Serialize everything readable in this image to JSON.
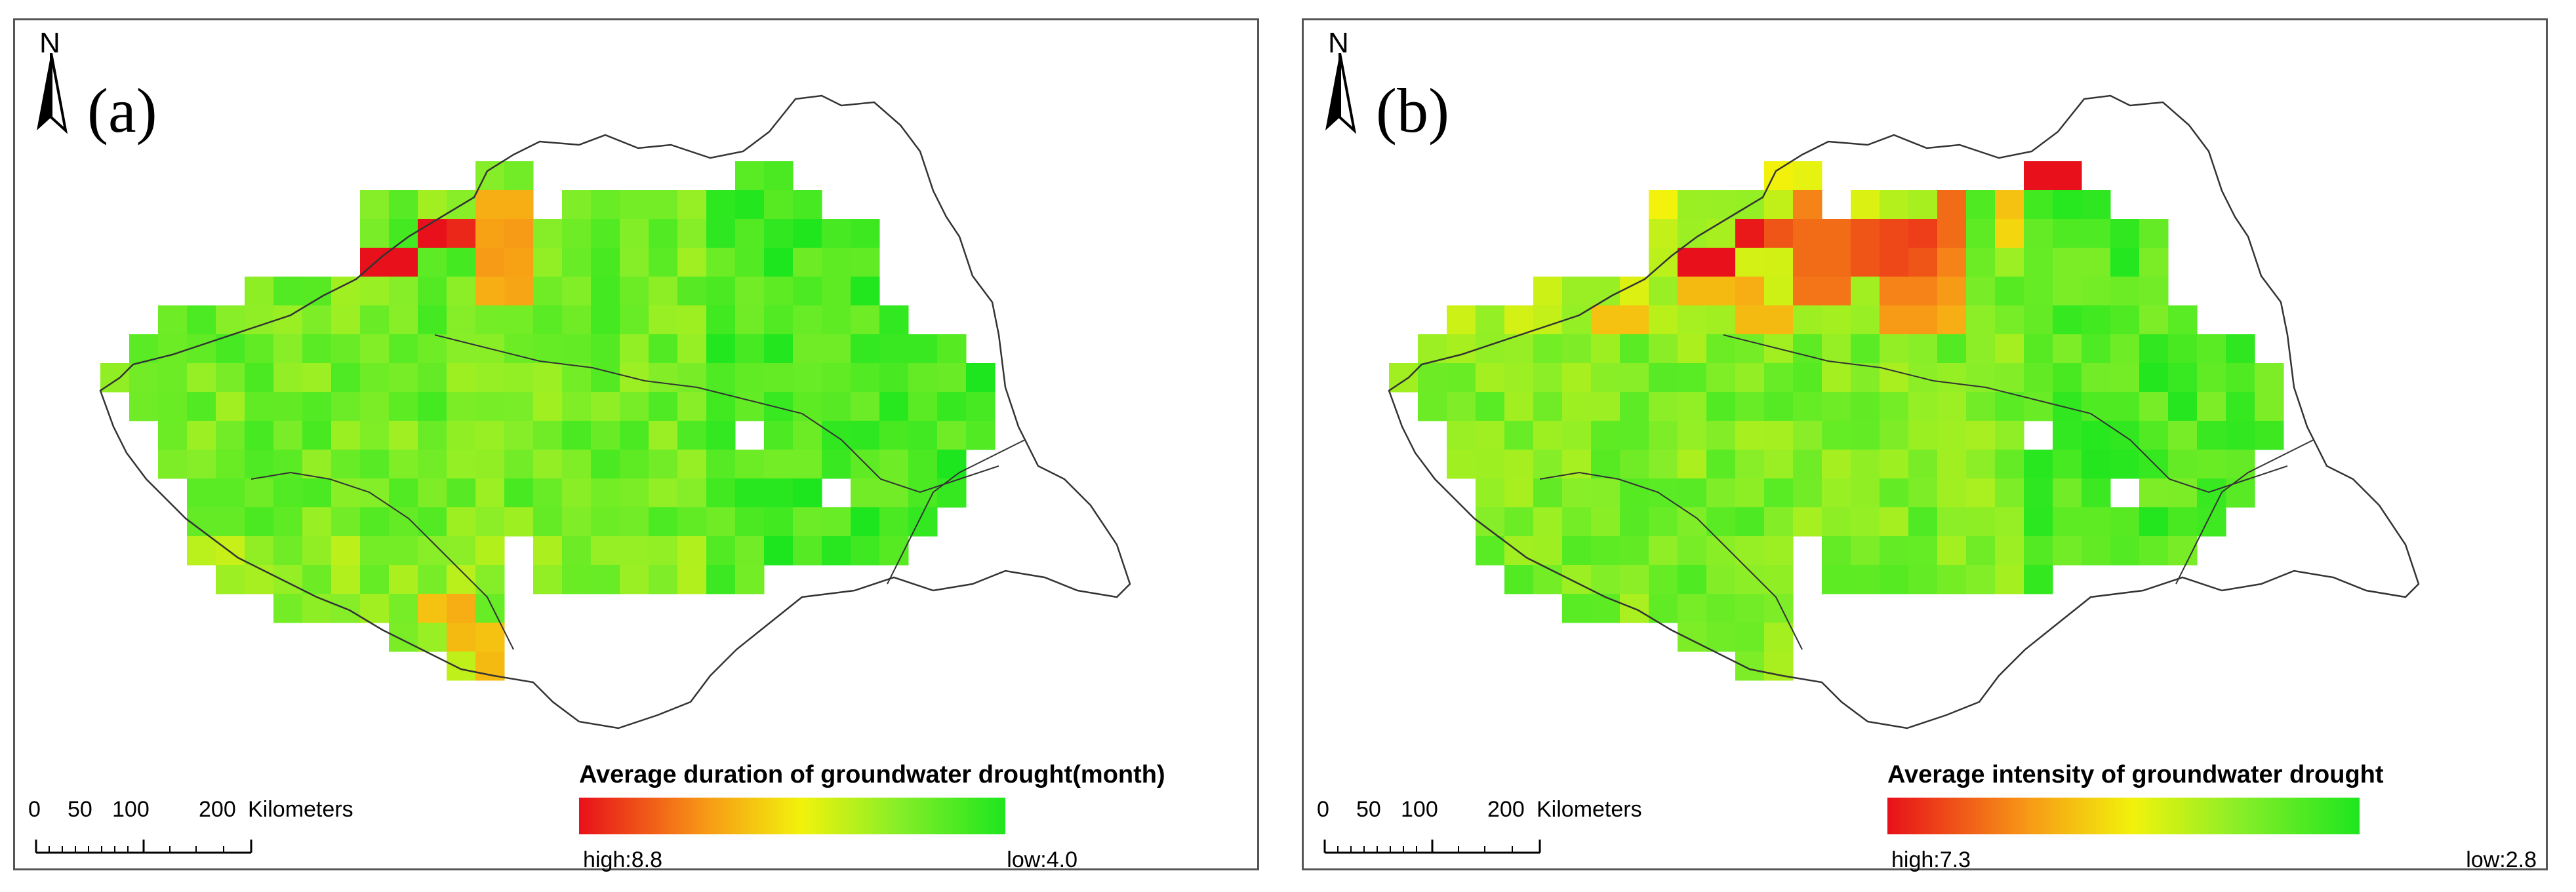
{
  "colors": {
    "high": "#e8101a",
    "mid_high": "#f79a16",
    "mid": "#f2f20c",
    "mid_low": "#86ee28",
    "low": "#1ee61e",
    "boundary": "#333333"
  },
  "north_arrow": {
    "letter": "N",
    "icon": "north-arrow-icon"
  },
  "scale_bar": {
    "ticks": [
      "0",
      "50",
      "100",
      "200"
    ],
    "unit": "Kilometers"
  },
  "panels": [
    {
      "label": "(a)",
      "legend": {
        "title": "Average duration of groundwater drought(month)",
        "high": "high:8.8",
        "low": "low:4.0",
        "high_value": 8.8,
        "low_value": 4.0
      },
      "hotspots": [
        {
          "row": 3,
          "col": 9,
          "level": 0.0
        },
        {
          "row": 3,
          "col": 10,
          "level": 0.0
        },
        {
          "row": 2,
          "col": 11,
          "level": 0.0
        },
        {
          "row": 2,
          "col": 12,
          "level": 0.05
        },
        {
          "row": 1,
          "col": 13,
          "level": 0.35
        },
        {
          "row": 1,
          "col": 14,
          "level": 0.35
        },
        {
          "row": 2,
          "col": 13,
          "level": 0.32
        },
        {
          "row": 2,
          "col": 14,
          "level": 0.3
        },
        {
          "row": 3,
          "col": 13,
          "level": 0.3
        },
        {
          "row": 3,
          "col": 14,
          "level": 0.32
        },
        {
          "row": 4,
          "col": 13,
          "level": 0.35
        },
        {
          "row": 4,
          "col": 14,
          "level": 0.33
        },
        {
          "row": 15,
          "col": 11,
          "level": 0.4
        },
        {
          "row": 15,
          "col": 12,
          "level": 0.35
        },
        {
          "row": 16,
          "col": 12,
          "level": 0.38
        },
        {
          "row": 16,
          "col": 13,
          "level": 0.4
        },
        {
          "row": 17,
          "col": 13,
          "level": 0.38
        }
      ]
    },
    {
      "label": "(b)",
      "legend": {
        "title": "Average intensity of groundwater drought",
        "high": "high:7.3",
        "low": "low:2.8",
        "high_value": 7.3,
        "low_value": 2.8
      },
      "hotspots": [
        {
          "row": 0,
          "col": 22,
          "level": 0.0
        },
        {
          "row": 0,
          "col": 23,
          "level": 0.0
        },
        {
          "row": 3,
          "col": 10,
          "level": 0.0
        },
        {
          "row": 3,
          "col": 11,
          "level": 0.0
        },
        {
          "row": 2,
          "col": 12,
          "level": 0.02
        },
        {
          "row": 2,
          "col": 13,
          "level": 0.15
        },
        {
          "row": 1,
          "col": 14,
          "level": 0.25
        },
        {
          "row": 2,
          "col": 14,
          "level": 0.2
        },
        {
          "row": 3,
          "col": 14,
          "level": 0.2
        },
        {
          "row": 4,
          "col": 14,
          "level": 0.22
        },
        {
          "row": 2,
          "col": 15,
          "level": 0.2
        },
        {
          "row": 3,
          "col": 15,
          "level": 0.2
        },
        {
          "row": 4,
          "col": 15,
          "level": 0.22
        },
        {
          "row": 2,
          "col": 16,
          "level": 0.15
        },
        {
          "row": 3,
          "col": 16,
          "level": 0.15
        },
        {
          "row": 2,
          "col": 17,
          "level": 0.12
        },
        {
          "row": 3,
          "col": 17,
          "level": 0.12
        },
        {
          "row": 4,
          "col": 17,
          "level": 0.25
        },
        {
          "row": 5,
          "col": 17,
          "level": 0.3
        },
        {
          "row": 2,
          "col": 18,
          "level": 0.1
        },
        {
          "row": 3,
          "col": 18,
          "level": 0.15
        },
        {
          "row": 4,
          "col": 18,
          "level": 0.25
        },
        {
          "row": 5,
          "col": 18,
          "level": 0.3
        },
        {
          "row": 1,
          "col": 19,
          "level": 0.2
        },
        {
          "row": 2,
          "col": 19,
          "level": 0.2
        },
        {
          "row": 3,
          "col": 19,
          "level": 0.25
        },
        {
          "row": 4,
          "col": 19,
          "level": 0.3
        },
        {
          "row": 5,
          "col": 19,
          "level": 0.35
        },
        {
          "row": 1,
          "col": 21,
          "level": 0.4
        },
        {
          "row": 2,
          "col": 21,
          "level": 0.45
        },
        {
          "row": 4,
          "col": 10,
          "level": 0.38
        },
        {
          "row": 4,
          "col": 11,
          "level": 0.38
        },
        {
          "row": 4,
          "col": 12,
          "level": 0.35
        },
        {
          "row": 5,
          "col": 12,
          "level": 0.38
        },
        {
          "row": 5,
          "col": 13,
          "level": 0.38
        },
        {
          "row": 5,
          "col": 7,
          "level": 0.4
        },
        {
          "row": 5,
          "col": 8,
          "level": 0.4
        }
      ]
    }
  ]
}
